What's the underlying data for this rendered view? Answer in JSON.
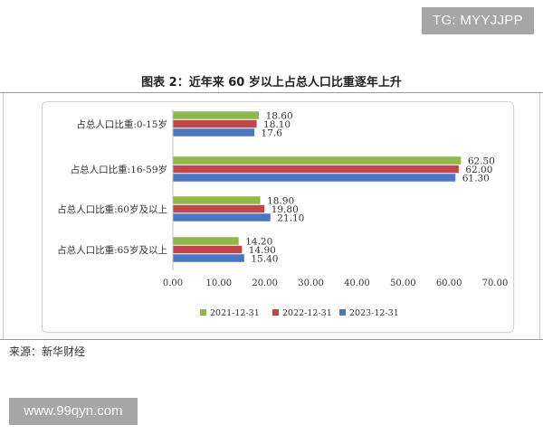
{
  "watermarks": {
    "top": "TG: MYYJJPP",
    "bottom": "www.99qyn.com"
  },
  "figure": {
    "title": "图表 2：近年来 60 岁以上占总人口比重逐年上升",
    "source": "来源：新华财经"
  },
  "colors": {
    "series_2021": "#8fb84a",
    "series_2022": "#c0464b",
    "series_2023": "#4a76c2"
  },
  "chart_data": {
    "type": "bar",
    "orientation": "horizontal",
    "title": "图表 2：近年来 60 岁以上占总人口比重逐年上升",
    "categories": [
      "占总人口比重:0-15岁",
      "占总人口比重:16-59岁",
      "占总人口比重:60岁及以上",
      "占总人口比重:65岁及以上"
    ],
    "series": [
      {
        "name": "2021-12-31",
        "values": [
          18.6,
          62.5,
          18.9,
          14.2
        ],
        "labels": [
          "18.60",
          "62.50",
          "18.90",
          "14.20"
        ],
        "color": "#8fb84a"
      },
      {
        "name": "2022-12-31",
        "values": [
          18.1,
          62.0,
          19.8,
          14.9
        ],
        "labels": [
          "18.10",
          "62.00",
          "19.80",
          "14.90"
        ],
        "color": "#c0464b"
      },
      {
        "name": "2023-12-31",
        "values": [
          17.6,
          61.3,
          21.1,
          15.4
        ],
        "labels": [
          "17.6",
          "61.30",
          "21.10",
          "15.40"
        ],
        "color": "#4a76c2"
      }
    ],
    "xlim": [
      0,
      70
    ],
    "xticks": [
      "0.00",
      "10.00",
      "20.00",
      "30.00",
      "40.00",
      "50.00",
      "60.00",
      "70.00"
    ],
    "xlabel": "",
    "ylabel": "",
    "grid": false,
    "legend_position": "bottom"
  }
}
